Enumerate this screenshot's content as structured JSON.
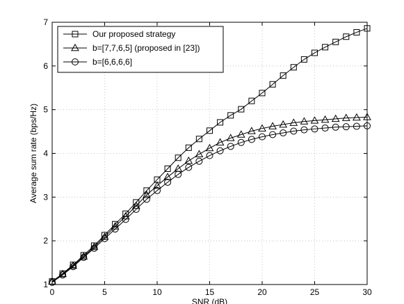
{
  "chart_data": {
    "type": "line",
    "title": "",
    "xlabel": "SNR (dB)",
    "ylabel": "Average sum rate (bps/Hz)",
    "xlim": [
      0,
      30
    ],
    "ylim": [
      1,
      7
    ],
    "xticks": [
      0,
      5,
      10,
      15,
      20,
      25,
      30
    ],
    "yticks": [
      1,
      2,
      3,
      4,
      5,
      6,
      7
    ],
    "grid": true,
    "legend_position": "top-left",
    "x": [
      0,
      1,
      2,
      3,
      4,
      5,
      6,
      7,
      8,
      9,
      10,
      11,
      12,
      13,
      14,
      15,
      16,
      17,
      18,
      19,
      20,
      21,
      22,
      23,
      24,
      25,
      26,
      27,
      28,
      29,
      30
    ],
    "series": [
      {
        "name": "Our proposed strategy",
        "marker": "square",
        "values": [
          1.07,
          1.25,
          1.45,
          1.67,
          1.89,
          2.13,
          2.38,
          2.62,
          2.88,
          3.15,
          3.4,
          3.65,
          3.9,
          4.13,
          4.33,
          4.52,
          4.71,
          4.87,
          5.01,
          5.2,
          5.38,
          5.58,
          5.78,
          5.97,
          6.15,
          6.3,
          6.43,
          6.55,
          6.67,
          6.77,
          6.86
        ]
      },
      {
        "name": "b=[7,7,6,5] (proposed in [23])",
        "marker": "triangle",
        "values": [
          1.07,
          1.24,
          1.43,
          1.64,
          1.86,
          2.09,
          2.33,
          2.56,
          2.8,
          3.05,
          3.26,
          3.46,
          3.65,
          3.83,
          3.98,
          4.12,
          4.25,
          4.35,
          4.43,
          4.51,
          4.57,
          4.62,
          4.66,
          4.7,
          4.73,
          4.75,
          4.77,
          4.79,
          4.81,
          4.82,
          4.83
        ]
      },
      {
        "name": "b=[6,6,6,6]",
        "marker": "circle",
        "values": [
          1.05,
          1.22,
          1.41,
          1.62,
          1.83,
          2.05,
          2.27,
          2.49,
          2.72,
          2.95,
          3.15,
          3.34,
          3.52,
          3.68,
          3.82,
          3.95,
          4.06,
          4.16,
          4.25,
          4.32,
          4.38,
          4.43,
          4.47,
          4.51,
          4.54,
          4.56,
          4.58,
          4.6,
          4.61,
          4.62,
          4.63
        ]
      }
    ]
  }
}
